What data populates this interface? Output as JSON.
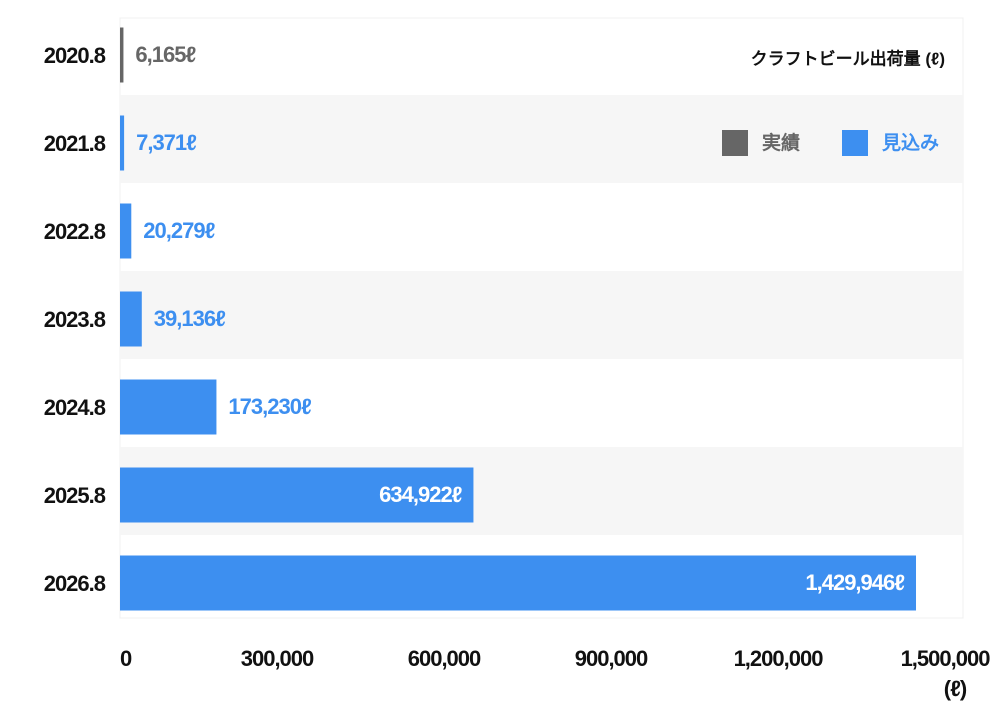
{
  "chart_data": {
    "type": "bar",
    "orientation": "horizontal",
    "title": "クラフトビール出荷量 (ℓ)",
    "x_unit_label": "(ℓ)",
    "categories": [
      "2020.8",
      "2021.8",
      "2022.8",
      "2023.8",
      "2024.8",
      "2025.8",
      "2026.8"
    ],
    "series": [
      {
        "name": "実績",
        "color": "#666666",
        "values": [
          6165,
          null,
          null,
          null,
          null,
          null,
          null
        ],
        "value_labels": [
          "6,165ℓ",
          null,
          null,
          null,
          null,
          null,
          null
        ]
      },
      {
        "name": "見込み",
        "color": "#3d8ff0",
        "values": [
          null,
          7371,
          20279,
          39136,
          173230,
          634922,
          1429946
        ],
        "value_labels": [
          null,
          "7,371ℓ",
          "20,279ℓ",
          "39,136ℓ",
          "173,230ℓ",
          "634,922ℓ",
          "1,429,946ℓ"
        ]
      }
    ],
    "xlim": [
      0,
      1500000
    ],
    "xticks": [
      0,
      {
        "value": 300000,
        "label": "300,000"
      },
      {
        "value": 600000,
        "label": "600,000"
      },
      {
        "value": 900000,
        "label": "900,000"
      },
      {
        "value": 1200000,
        "label": "1,200,000"
      },
      {
        "value": 1500000,
        "label": "1,500,000"
      }
    ]
  }
}
